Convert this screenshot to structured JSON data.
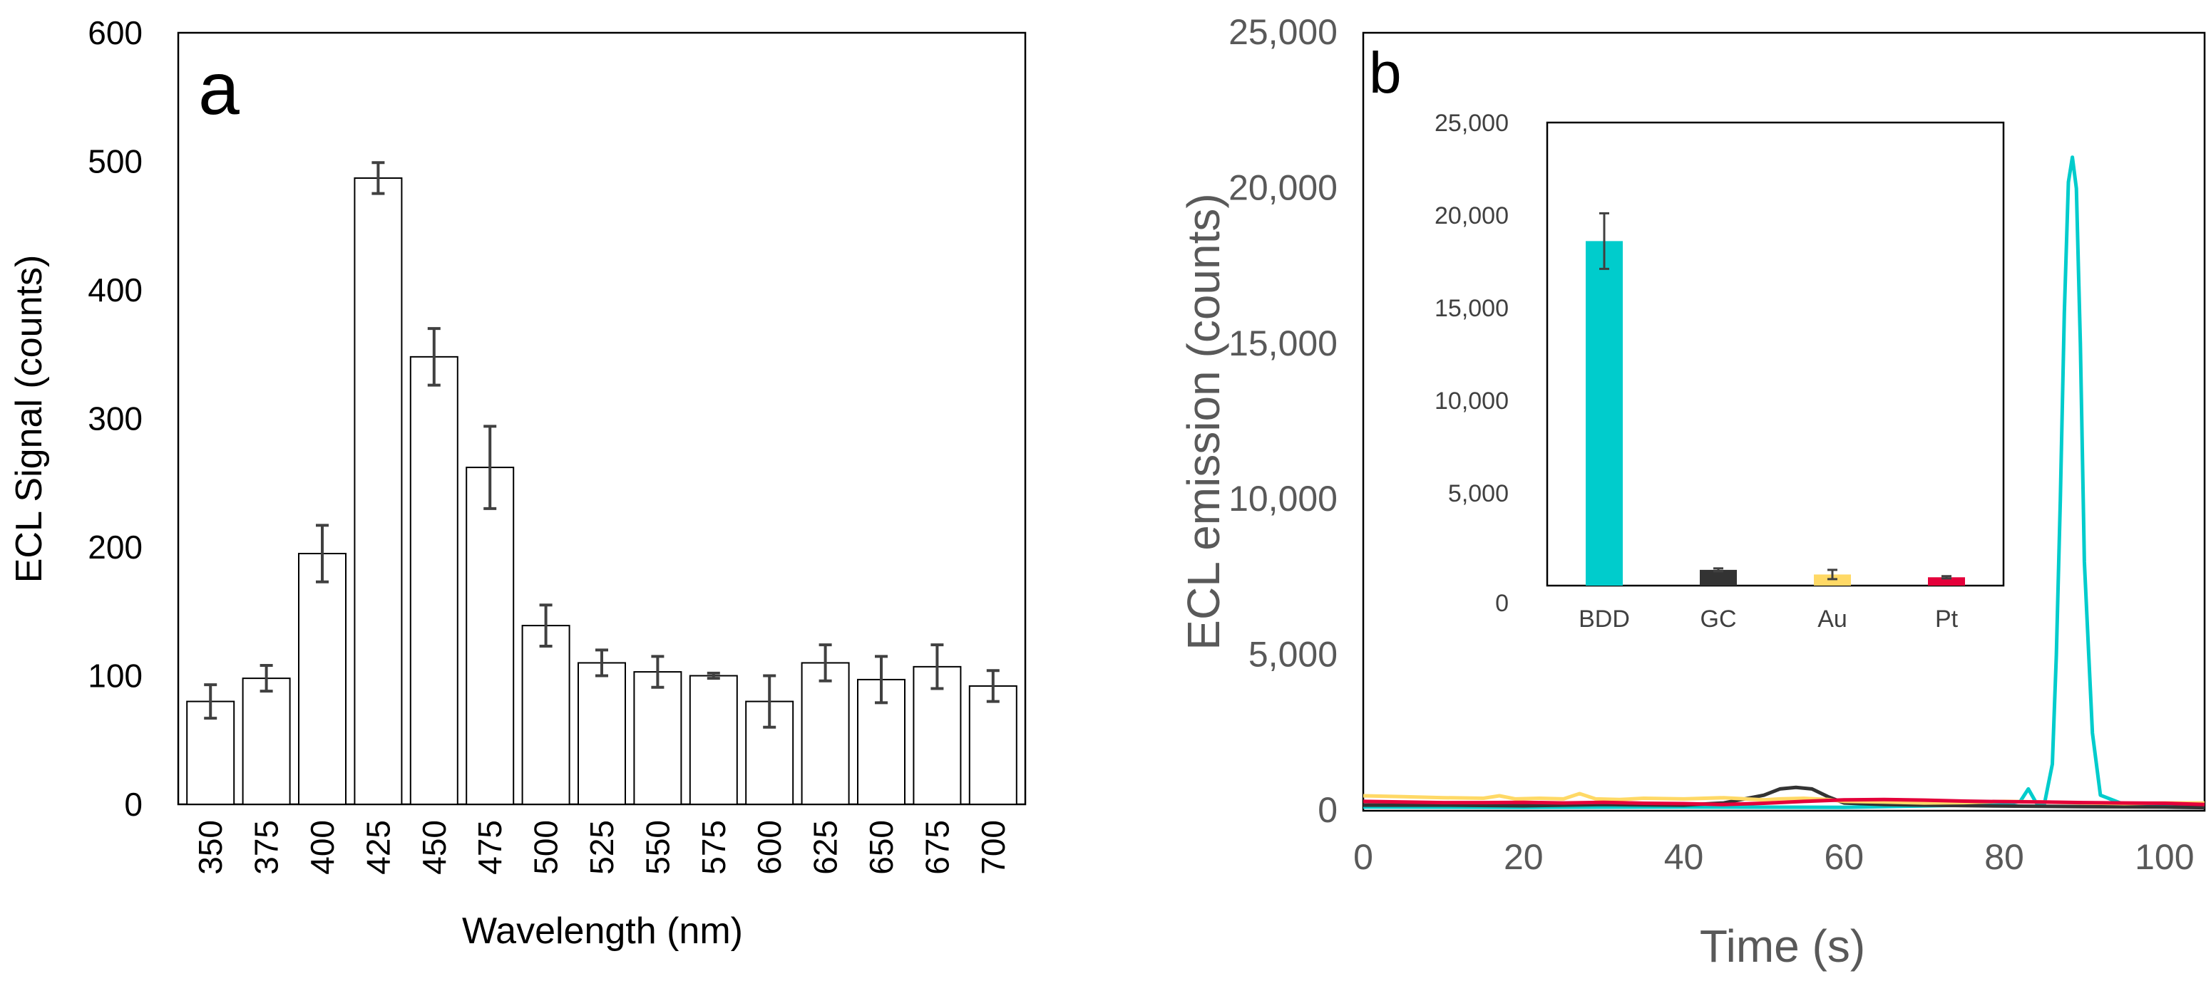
{
  "chart_data": [
    {
      "panel": "a",
      "type": "bar",
      "title": "",
      "panel_label": "a",
      "xlabel": "Wavelength (nm)",
      "ylabel": "ECL Signal (counts)",
      "ylim": [
        0,
        600
      ],
      "yticks": [
        "0",
        "100",
        "200",
        "300",
        "400",
        "500",
        "600"
      ],
      "categories": [
        "350",
        "375",
        "400",
        "425",
        "450",
        "475",
        "500",
        "525",
        "550",
        "575",
        "600",
        "625",
        "650",
        "675",
        "700"
      ],
      "values": [
        80,
        98,
        195,
        487,
        348,
        262,
        139,
        110,
        103,
        100,
        80,
        110,
        97,
        107,
        92
      ],
      "errors": [
        13,
        10,
        22,
        12,
        22,
        32,
        16,
        10,
        12,
        2,
        20,
        14,
        18,
        17,
        12
      ],
      "grid": false,
      "bar_fill": "#ffffff",
      "bar_edge": "#000000"
    },
    {
      "panel": "b",
      "type": "line",
      "panel_label": "b",
      "xlabel": "Time (s)",
      "ylabel": "ECL emission (counts)",
      "xlim": [
        0,
        105
      ],
      "ylim": [
        0,
        25000
      ],
      "xticks": [
        "0",
        "20",
        "40",
        "60",
        "80",
        "100"
      ],
      "yticks": [
        "0",
        "5,000",
        "10,000",
        "15,000",
        "20,000",
        "25,000"
      ],
      "grid": false,
      "series": [
        {
          "name": "BDD",
          "color": "#00CCCC",
          "x": [
            0,
            20,
            40,
            60,
            80,
            82,
            83,
            84,
            85,
            86,
            86.5,
            87,
            87.5,
            88,
            88.5,
            89,
            89.5,
            90,
            91,
            92,
            95,
            100,
            105
          ],
          "y": [
            120,
            110,
            120,
            110,
            200,
            300,
            700,
            250,
            200,
            1500,
            5000,
            10000,
            16000,
            20200,
            21000,
            20000,
            15000,
            8000,
            2500,
            500,
            200,
            150,
            150
          ]
        },
        {
          "name": "GC",
          "color": "#333333",
          "x": [
            0,
            10,
            20,
            30,
            40,
            45,
            50,
            52,
            54,
            56,
            58,
            60,
            65,
            70,
            80,
            90,
            100,
            105
          ],
          "y": [
            180,
            180,
            160,
            200,
            180,
            250,
            500,
            700,
            750,
            700,
            450,
            250,
            200,
            180,
            150,
            130,
            120,
            100
          ]
        },
        {
          "name": "Au",
          "color": "#FFD966",
          "x": [
            0,
            5,
            10,
            15,
            17,
            19,
            22,
            25,
            27,
            29,
            32,
            35,
            40,
            45,
            50,
            52,
            55,
            58,
            60,
            65,
            70,
            75,
            80,
            85,
            90,
            95,
            100,
            105
          ],
          "y": [
            480,
            450,
            420,
            400,
            480,
            380,
            400,
            380,
            550,
            380,
            360,
            400,
            380,
            420,
            350,
            380,
            400,
            360,
            300,
            280,
            250,
            260,
            300,
            280,
            250,
            230,
            250,
            250
          ]
        },
        {
          "name": "Pt",
          "color": "#E4003A",
          "x": [
            0,
            5,
            10,
            15,
            20,
            25,
            30,
            35,
            40,
            45,
            50,
            55,
            60,
            65,
            70,
            75,
            80,
            85,
            90,
            95,
            100,
            105
          ],
          "y": [
            300,
            280,
            260,
            260,
            270,
            250,
            270,
            240,
            230,
            200,
            240,
            300,
            350,
            360,
            340,
            310,
            290,
            280,
            260,
            250,
            240,
            200
          ]
        }
      ]
    },
    {
      "panel": "b-inset",
      "type": "bar",
      "categories": [
        "BDD",
        "GC",
        "Au",
        "Pt"
      ],
      "values": [
        18600,
        850,
        600,
        450
      ],
      "errors": [
        1500,
        80,
        250,
        60
      ],
      "colors": [
        "#00CCCC",
        "#333333",
        "#FFD966",
        "#E4003A"
      ],
      "ylim": [
        0,
        25000
      ],
      "yticks": [
        "0",
        "5,000",
        "10,000",
        "15,000",
        "20,000",
        "25,000"
      ],
      "grid": false
    }
  ]
}
